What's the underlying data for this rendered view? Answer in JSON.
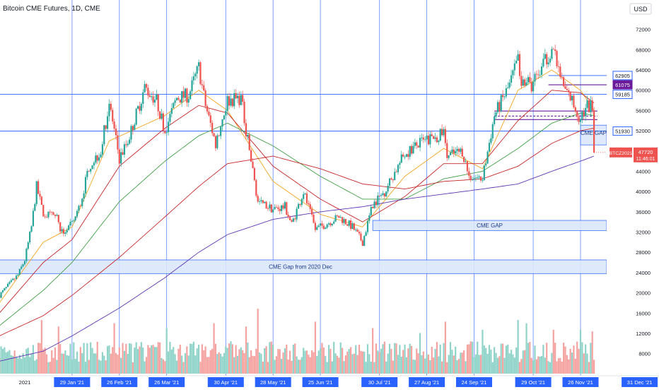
{
  "title": "Bitcoin CME Futures, 1D, CME",
  "currency_button": "USD",
  "colors": {
    "up": "#26a69a",
    "down": "#ef5350",
    "vol_up": "#8fd3c9",
    "vol_down": "#f5a3a1",
    "grid_blue": "#2962ff",
    "zone_fill": "#dbe7fb",
    "zone_text": "#1e3a8a",
    "price_tag": "#ef5350",
    "ma_orange": "#f5a623",
    "ma_red": "#c62828",
    "ma_green": "#43a047",
    "ma_purple": "#5e35b1",
    "level_purple": "#6a1b9a"
  },
  "chart_data": {
    "type": "candlestick",
    "symbol": "BTCZ2021",
    "last_price": 47720,
    "countdown": "11:46:01",
    "ylim": [
      6000,
      76000
    ],
    "y_ticks": [
      8000,
      12000,
      16000,
      20000,
      24000,
      28000,
      32000,
      36000,
      40000,
      44000,
      48000,
      52000,
      56000,
      60000,
      64000,
      68000,
      72000
    ],
    "y_top_partial": "76",
    "x_date_labels": [
      "2021",
      "29 Jan '21",
      "26 Feb '21",
      "26 Mar '21",
      "30 Apr '21",
      "28 May '21",
      "25 Jun '21",
      "30 Jul '21",
      "27 Aug '21",
      "24 Sep '21",
      "29 Oct '21",
      "26 Nov '21",
      "31 Dec '21"
    ],
    "x_highlighted_labels": [
      "29 Jan '21",
      "26 Feb '21",
      "26 Mar '21",
      "30 Apr '21",
      "28 May '21",
      "25 Jun '21",
      "30 Jul '21",
      "27 Aug '21",
      "24 Sep '21",
      "29 Oct '21",
      "26 Nov '21",
      "31 Dec '21"
    ],
    "price_path": [
      [
        "2020-12-17",
        19500
      ],
      [
        "2020-12-28",
        23500
      ],
      [
        "2021-01-01",
        26500
      ],
      [
        "2021-01-05",
        33000
      ],
      [
        "2021-01-08",
        41000
      ],
      [
        "2021-01-12",
        35500
      ],
      [
        "2021-01-20",
        35000
      ],
      [
        "2021-01-22",
        31500
      ],
      [
        "2021-01-29",
        33500
      ],
      [
        "2021-02-03",
        37500
      ],
      [
        "2021-02-08",
        45000
      ],
      [
        "2021-02-15",
        48000
      ],
      [
        "2021-02-20",
        57500
      ],
      [
        "2021-02-26",
        46500
      ],
      [
        "2021-03-03",
        50000
      ],
      [
        "2021-03-13",
        60500
      ],
      [
        "2021-03-20",
        58000
      ],
      [
        "2021-03-25",
        52000
      ],
      [
        "2021-04-01",
        58500
      ],
      [
        "2021-04-08",
        59000
      ],
      [
        "2021-04-14",
        64500
      ],
      [
        "2021-04-18",
        57000
      ],
      [
        "2021-04-24",
        49500
      ],
      [
        "2021-05-01",
        58000
      ],
      [
        "2021-05-09",
        58500
      ],
      [
        "2021-05-13",
        50000
      ],
      [
        "2021-05-19",
        38000
      ],
      [
        "2021-05-22",
        37500
      ],
      [
        "2021-05-28",
        36500
      ],
      [
        "2021-06-04",
        37000
      ],
      [
        "2021-06-08",
        33500
      ],
      [
        "2021-06-15",
        40000
      ],
      [
        "2021-06-22",
        32500
      ],
      [
        "2021-06-25",
        33000
      ],
      [
        "2021-07-06",
        35000
      ],
      [
        "2021-07-14",
        33000
      ],
      [
        "2021-07-20",
        30000
      ],
      [
        "2021-07-26",
        37500
      ],
      [
        "2021-08-02",
        40000
      ],
      [
        "2021-08-14",
        47500
      ],
      [
        "2021-08-23",
        49500
      ],
      [
        "2021-09-06",
        51500
      ],
      [
        "2021-09-08",
        47000
      ],
      [
        "2021-09-17",
        48000
      ],
      [
        "2021-09-21",
        43000
      ],
      [
        "2021-09-29",
        42500
      ],
      [
        "2021-10-06",
        55000
      ],
      [
        "2021-10-15",
        61000
      ],
      [
        "2021-10-20",
        66000
      ],
      [
        "2021-10-22",
        62000
      ],
      [
        "2021-10-28",
        61000
      ],
      [
        "2021-11-02",
        63500
      ],
      [
        "2021-11-09",
        68500
      ],
      [
        "2021-11-16",
        60500
      ],
      [
        "2021-11-21",
        58000
      ],
      [
        "2021-11-26",
        54000
      ],
      [
        "2021-11-29",
        57000
      ],
      [
        "2021-12-03",
        56500
      ],
      [
        "2021-12-04",
        47720
      ]
    ],
    "moving_averages": [
      {
        "color_key": "ma_orange",
        "path": [
          [
            "2020-12-17",
            18000
          ],
          [
            "2021-01-12",
            30000
          ],
          [
            "2021-01-29",
            33000
          ],
          [
            "2021-02-20",
            50000
          ],
          [
            "2021-03-25",
            55000
          ],
          [
            "2021-04-14",
            60000
          ],
          [
            "2021-05-01",
            56000
          ],
          [
            "2021-05-28",
            42000
          ],
          [
            "2021-06-25",
            35500
          ],
          [
            "2021-07-20",
            33000
          ],
          [
            "2021-08-14",
            43000
          ],
          [
            "2021-09-06",
            48500
          ],
          [
            "2021-09-29",
            44500
          ],
          [
            "2021-10-20",
            60000
          ],
          [
            "2021-11-09",
            64000
          ],
          [
            "2021-11-26",
            60000
          ],
          [
            "2021-12-04",
            56000
          ]
        ]
      },
      {
        "color_key": "ma_red",
        "path": [
          [
            "2020-12-17",
            16000
          ],
          [
            "2021-01-12",
            26000
          ],
          [
            "2021-01-29",
            30500
          ],
          [
            "2021-02-26",
            45000
          ],
          [
            "2021-03-25",
            52500
          ],
          [
            "2021-04-14",
            57000
          ],
          [
            "2021-05-01",
            55500
          ],
          [
            "2021-05-28",
            45000
          ],
          [
            "2021-06-25",
            38500
          ],
          [
            "2021-07-20",
            34000
          ],
          [
            "2021-08-14",
            39000
          ],
          [
            "2021-09-06",
            45500
          ],
          [
            "2021-09-29",
            45500
          ],
          [
            "2021-10-20",
            54000
          ],
          [
            "2021-11-09",
            60000
          ],
          [
            "2021-11-26",
            59500
          ],
          [
            "2021-12-04",
            57500
          ]
        ]
      },
      {
        "color_key": "ma_green",
        "path": [
          [
            "2020-12-17",
            13500
          ],
          [
            "2021-01-12",
            20500
          ],
          [
            "2021-01-29",
            26000
          ],
          [
            "2021-02-26",
            38000
          ],
          [
            "2021-03-25",
            46000
          ],
          [
            "2021-04-14",
            51000
          ],
          [
            "2021-05-01",
            53500
          ],
          [
            "2021-05-28",
            49000
          ],
          [
            "2021-06-25",
            43000
          ],
          [
            "2021-07-20",
            38500
          ],
          [
            "2021-08-14",
            38500
          ],
          [
            "2021-09-06",
            42500
          ],
          [
            "2021-09-29",
            44000
          ],
          [
            "2021-10-20",
            48500
          ],
          [
            "2021-11-09",
            53500
          ],
          [
            "2021-11-26",
            55500
          ],
          [
            "2021-12-04",
            55000
          ]
        ]
      },
      {
        "color_key": "ma_red",
        "path": [
          [
            "2020-12-17",
            11500
          ],
          [
            "2021-01-12",
            15500
          ],
          [
            "2021-01-29",
            19500
          ],
          [
            "2021-02-26",
            27000
          ],
          [
            "2021-03-25",
            35000
          ],
          [
            "2021-04-14",
            41000
          ],
          [
            "2021-05-01",
            45500
          ],
          [
            "2021-05-28",
            47000
          ],
          [
            "2021-06-25",
            44500
          ],
          [
            "2021-07-20",
            41500
          ],
          [
            "2021-08-14",
            40500
          ],
          [
            "2021-09-06",
            42000
          ],
          [
            "2021-09-29",
            42500
          ],
          [
            "2021-10-20",
            45000
          ],
          [
            "2021-11-09",
            49500
          ],
          [
            "2021-11-26",
            52000
          ],
          [
            "2021-12-04",
            52500
          ]
        ]
      },
      {
        "color_key": "ma_purple",
        "path": [
          [
            "2020-12-17",
            6500
          ],
          [
            "2021-01-12",
            8500
          ],
          [
            "2021-01-29",
            11500
          ],
          [
            "2021-02-26",
            17000
          ],
          [
            "2021-03-25",
            23000
          ],
          [
            "2021-04-14",
            28000
          ],
          [
            "2021-05-01",
            31500
          ],
          [
            "2021-05-28",
            34500
          ],
          [
            "2021-06-25",
            36000
          ],
          [
            "2021-07-20",
            37000
          ],
          [
            "2021-08-14",
            38500
          ],
          [
            "2021-09-06",
            39500
          ],
          [
            "2021-09-29",
            40500
          ],
          [
            "2021-10-20",
            41500
          ],
          [
            "2021-11-09",
            44000
          ],
          [
            "2021-11-26",
            46000
          ],
          [
            "2021-12-04",
            47000
          ]
        ]
      }
    ],
    "volume": {
      "scale_max": 20000,
      "spikes": [
        [
          "2021-01-11",
          16500
        ],
        [
          "2021-01-21",
          14500
        ],
        [
          "2021-02-23",
          15500
        ],
        [
          "2021-03-26",
          14000
        ],
        [
          "2021-04-23",
          15500
        ],
        [
          "2021-05-12",
          14500
        ],
        [
          "2021-05-19",
          20000
        ],
        [
          "2021-06-22",
          16000
        ],
        [
          "2021-07-26",
          14000
        ],
        [
          "2021-08-23",
          12500
        ],
        [
          "2021-09-07",
          16000
        ],
        [
          "2021-09-29",
          13500
        ],
        [
          "2021-10-20",
          16500
        ],
        [
          "2021-10-25",
          15500
        ],
        [
          "2021-11-10",
          13500
        ],
        [
          "2021-11-26",
          13500
        ],
        [
          "2021-12-03",
          13000
        ]
      ]
    },
    "horizontal_levels": [
      {
        "price": 62905,
        "label": "62905",
        "style": "blue",
        "tag": "blue",
        "from": "2021-11-07"
      },
      {
        "price": 61075,
        "label": "61075",
        "style": "purple",
        "tag": "purple",
        "from": "2021-11-07"
      },
      {
        "price": 59185,
        "label": "59185",
        "style": "blue",
        "tag": "blue",
        "from": "2020-12-17"
      },
      {
        "price": 51930,
        "label": "51930",
        "style": "blue",
        "tag": "blue",
        "from": "2020-12-17"
      },
      {
        "price": 55900,
        "label": "",
        "style": "purple",
        "from": "2021-10-06",
        "to": "2021-12-06"
      },
      {
        "price": 54900,
        "label": "",
        "style": "purple_dashed",
        "from": "2021-10-06",
        "to": "2021-12-06"
      },
      {
        "price": 54200,
        "label": "",
        "style": "purple",
        "from": "2021-10-06",
        "to": "2021-12-06"
      }
    ],
    "zones": [
      {
        "label": "CME Gap from 2020 Dec",
        "top": 26500,
        "bottom": 23800,
        "from": "2020-12-17",
        "to": "2022-01-14"
      },
      {
        "label": "CME GAP",
        "top": 34300,
        "bottom": 32300,
        "from": "2021-07-26",
        "to": "2022-01-14"
      },
      {
        "label": "CME GAP",
        "top": 53100,
        "bottom": 49200,
        "from": "2021-11-26",
        "to": "2021-12-16"
      }
    ]
  }
}
